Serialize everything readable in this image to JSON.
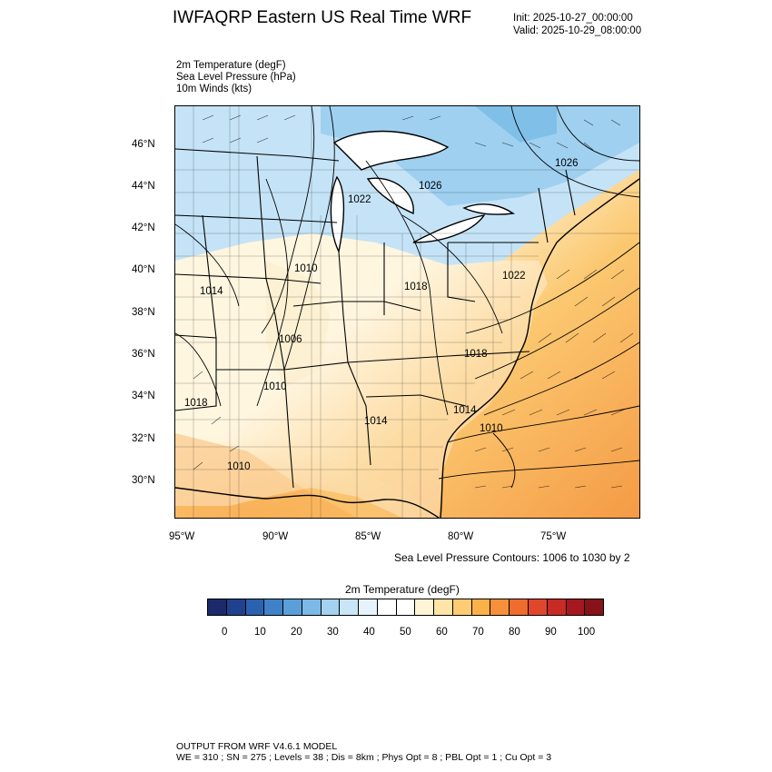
{
  "header": {
    "title": "IWFAQRP Eastern US Real Time WRF",
    "init": "Init: 2025-10-27_00:00:00",
    "valid": "Valid: 2025-10-29_08:00:00"
  },
  "fields": [
    {
      "name": "2m Temperature",
      "unit": "(degF)",
      "label": "2m Temperature   (degF)"
    },
    {
      "name": "Sea Level Pressure",
      "unit": "(hPa)",
      "label": "Sea Level Pressure   (hPa)"
    },
    {
      "name": "10m Winds",
      "unit": "(kts)",
      "label": "10m Winds   (kts)"
    }
  ],
  "map": {
    "lat_labels": [
      "46°N",
      "44°N",
      "42°N",
      "40°N",
      "38°N",
      "36°N",
      "34°N",
      "32°N",
      "30°N"
    ],
    "lon_labels": [
      "95°W",
      "90°W",
      "85°W",
      "80°W",
      "75°W"
    ],
    "pressure_labels": [
      "1026",
      "1026",
      "1022",
      "1010",
      "1014",
      "1018",
      "1022",
      "1006",
      "1018",
      "1010",
      "1018",
      "1014",
      "1014",
      "1010",
      "1010"
    ],
    "contour_note": "Sea Level Pressure Contours: 1006 to 1030 by 2"
  },
  "colorbar": {
    "title": "2m Temperature  (degF)",
    "colors": [
      "#1c2a6b",
      "#1f418f",
      "#2b62b0",
      "#3f82c7",
      "#5b9fd9",
      "#7db9e6",
      "#a3d1f0",
      "#c9e6f8",
      "#e6f3fc",
      "#ffffff",
      "#ffffff",
      "#fff4d6",
      "#ffe4a8",
      "#ffcc74",
      "#fbb04a",
      "#f7903a",
      "#ef6b2e",
      "#e0462a",
      "#c82a26",
      "#a6181f",
      "#871218"
    ],
    "ticks": [
      "0",
      "10",
      "20",
      "30",
      "40",
      "50",
      "60",
      "70",
      "80",
      "90",
      "100"
    ]
  },
  "footer": {
    "line1": "OUTPUT FROM WRF V4.6.1 MODEL",
    "line2": "WE = 310 ; SN = 275 ; Levels = 38 ; Dis = 8km ; Phys Opt = 8 ; PBL Opt = 1 ; Cu Opt = 3"
  }
}
